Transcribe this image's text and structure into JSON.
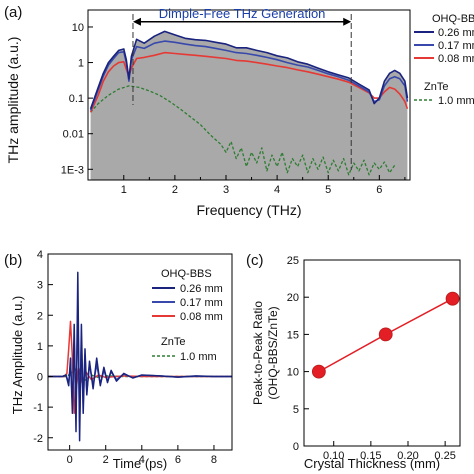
{
  "chart_data": [
    {
      "panel": "(a)",
      "type": "area",
      "xlabel": "Frequency (THz)",
      "ylabel": "THz amplitude (a.u.)",
      "xlim": [
        0.3,
        6.6
      ],
      "ylim": [
        0.0005,
        30
      ],
      "yscale": "log",
      "xticks": [
        1,
        2,
        3,
        4,
        5,
        6
      ],
      "yticks": [
        0.001,
        0.01,
        0.1,
        1,
        10
      ],
      "ytick_labels": [
        "1E-3",
        "0.01",
        "0.1",
        "1",
        "10"
      ],
      "annotation": {
        "text": "Dimple-Free THz Generation",
        "from": 1.18,
        "to": 5.45,
        "y": 14
      },
      "legend_groups": [
        {
          "title": "OHQ-BBS",
          "entries": [
            "0.26 mm",
            "0.17 mm",
            "0.08 mm"
          ]
        },
        {
          "title": "ZnTe",
          "entries": [
            "1.0 mm"
          ]
        }
      ],
      "legend_placement": "right-outside",
      "grid": false,
      "series": [
        {
          "name": "0.26 mm",
          "color": "#1a237e",
          "fill": "#a9a9a9",
          "x": [
            0.35,
            0.5,
            0.6,
            0.7,
            0.8,
            0.9,
            1.0,
            1.05,
            1.1,
            1.15,
            1.25,
            1.4,
            1.6,
            1.8,
            2.0,
            2.2,
            2.4,
            2.6,
            2.8,
            3.0,
            3.2,
            3.4,
            3.6,
            3.8,
            4.0,
            4.2,
            4.4,
            4.6,
            4.8,
            5.0,
            5.2,
            5.4,
            5.6,
            5.8,
            5.9,
            6.0,
            6.1,
            6.2,
            6.3,
            6.4,
            6.5,
            6.55
          ],
          "y": [
            0.05,
            0.2,
            0.5,
            1.0,
            1.5,
            2.2,
            2.4,
            1.2,
            0.35,
            1.5,
            4.5,
            3.5,
            5.5,
            7.5,
            6.0,
            4.8,
            4.4,
            4.2,
            3.7,
            3.3,
            2.6,
            2.6,
            2.2,
            1.9,
            1.55,
            1.35,
            1.05,
            0.9,
            0.7,
            0.55,
            0.45,
            0.37,
            0.25,
            0.17,
            0.07,
            0.1,
            0.3,
            0.5,
            0.6,
            0.5,
            0.3,
            0.1
          ]
        },
        {
          "name": "0.17 mm",
          "color": "#3949ab",
          "x": [
            0.35,
            0.5,
            0.6,
            0.7,
            0.8,
            0.9,
            1.0,
            1.05,
            1.1,
            1.15,
            1.25,
            1.4,
            1.6,
            1.8,
            2.0,
            2.2,
            2.4,
            2.6,
            2.8,
            3.0,
            3.2,
            3.4,
            3.6,
            3.8,
            4.0,
            4.2,
            4.4,
            4.6,
            4.8,
            5.0,
            5.2,
            5.4,
            5.6,
            5.8,
            5.9,
            6.0,
            6.1,
            6.2,
            6.3,
            6.4,
            6.5,
            6.55
          ],
          "y": [
            0.045,
            0.17,
            0.42,
            0.85,
            1.3,
            1.9,
            2.0,
            1.0,
            0.3,
            1.2,
            2.8,
            2.5,
            3.5,
            4.0,
            3.7,
            3.3,
            3.0,
            2.8,
            2.5,
            2.2,
            1.9,
            1.8,
            1.6,
            1.4,
            1.2,
            1.0,
            0.85,
            0.75,
            0.6,
            0.48,
            0.4,
            0.32,
            0.22,
            0.15,
            0.08,
            0.09,
            0.22,
            0.35,
            0.4,
            0.35,
            0.22,
            0.08
          ]
        },
        {
          "name": "0.08 mm",
          "color": "#e53935",
          "x": [
            0.35,
            0.5,
            0.6,
            0.7,
            0.8,
            0.9,
            1.0,
            1.05,
            1.1,
            1.15,
            1.25,
            1.4,
            1.6,
            1.8,
            2.0,
            2.2,
            2.4,
            2.6,
            2.8,
            3.0,
            3.2,
            3.4,
            3.6,
            3.8,
            4.0,
            4.2,
            4.4,
            4.6,
            4.8,
            5.0,
            5.2,
            5.4,
            5.6,
            5.8,
            5.9,
            6.0,
            6.1,
            6.2,
            6.3,
            6.4,
            6.5,
            6.55
          ],
          "y": [
            0.04,
            0.12,
            0.3,
            0.55,
            0.8,
            1.0,
            1.05,
            0.65,
            0.4,
            0.7,
            1.3,
            1.4,
            1.6,
            1.9,
            1.8,
            1.7,
            1.6,
            1.5,
            1.4,
            1.3,
            1.15,
            1.1,
            1.0,
            0.9,
            0.8,
            0.72,
            0.62,
            0.55,
            0.47,
            0.4,
            0.34,
            0.28,
            0.2,
            0.14,
            0.1,
            0.1,
            0.15,
            0.2,
            0.18,
            0.13,
            0.08,
            0.05
          ]
        },
        {
          "name": "1.0 mm",
          "color": "#2e7d32",
          "dash": true,
          "x": [
            0.35,
            0.5,
            0.7,
            0.9,
            1.1,
            1.3,
            1.5,
            1.7,
            1.9,
            2.1,
            2.3,
            2.5,
            2.7,
            2.9,
            3.0,
            3.1,
            3.2,
            3.3,
            3.4,
            3.5,
            3.6,
            3.7,
            3.8,
            3.9,
            4.0,
            4.1,
            4.2,
            4.3,
            4.4,
            4.5,
            4.6,
            4.7,
            4.8,
            4.9,
            5.0,
            5.1,
            5.2,
            5.3,
            5.4,
            5.5,
            5.6,
            5.7,
            5.8,
            5.9,
            6.0,
            6.1,
            6.2,
            6.3
          ],
          "y": [
            0.04,
            0.07,
            0.12,
            0.18,
            0.22,
            0.2,
            0.16,
            0.12,
            0.08,
            0.05,
            0.03,
            0.018,
            0.009,
            0.005,
            0.003,
            0.006,
            0.002,
            0.004,
            0.0012,
            0.003,
            0.0015,
            0.004,
            0.0009,
            0.0025,
            0.0012,
            0.003,
            0.0008,
            0.002,
            0.0012,
            0.0025,
            0.0008,
            0.002,
            0.001,
            0.0022,
            0.0008,
            0.0018,
            0.0009,
            0.002,
            0.0007,
            0.0015,
            0.0009,
            0.0018,
            0.0007,
            0.0015,
            0.001,
            0.0016,
            0.0008,
            0.0013
          ]
        }
      ]
    },
    {
      "panel": "(b)",
      "type": "line",
      "xlabel": "Time (ps)",
      "ylabel": "THz Amplitude (a.u.)",
      "xlim": [
        -1.2,
        9
      ],
      "ylim": [
        -2.4,
        4.0
      ],
      "xticks": [
        0,
        2,
        4,
        6,
        8
      ],
      "yticks": [
        -2,
        -1,
        0,
        1,
        2,
        3,
        4
      ],
      "legend_groups": [
        {
          "title": "OHQ-BBS",
          "entries": [
            "0.26 mm",
            "0.17 mm",
            "0.08 mm"
          ]
        },
        {
          "title": "ZnTe",
          "entries": [
            "1.0 mm"
          ]
        }
      ],
      "legend_placement": "top-right",
      "grid": false,
      "series": [
        {
          "name": "0.26 mm",
          "color": "#1a237e",
          "x": [
            -1.2,
            -0.4,
            -0.2,
            -0.05,
            0.05,
            0.15,
            0.25,
            0.35,
            0.45,
            0.55,
            0.65,
            0.75,
            0.85,
            0.95,
            1.1,
            1.3,
            1.5,
            1.7,
            1.9,
            2.1,
            2.3,
            2.6,
            3.0,
            3.5,
            4.0,
            5.0,
            6.0,
            7.0,
            8.0,
            9.0
          ],
          "y": [
            0,
            0,
            0.05,
            -0.3,
            0.6,
            -1.2,
            1.7,
            -1.8,
            3.4,
            -2.1,
            1.7,
            -1.2,
            0.9,
            -0.6,
            0.5,
            -0.4,
            0.6,
            -0.3,
            0.3,
            -0.2,
            0.2,
            -0.15,
            0.1,
            -0.05,
            0.05,
            0.02,
            -0.02,
            0.02,
            0,
            0
          ]
        },
        {
          "name": "0.17 mm",
          "color": "#3949ab",
          "x": [
            -1.2,
            -0.4,
            -0.2,
            -0.05,
            0.05,
            0.15,
            0.25,
            0.35,
            0.45,
            0.55,
            0.65,
            0.75,
            0.85,
            0.95,
            1.1,
            1.3,
            1.5,
            1.7,
            1.9,
            2.1,
            2.3,
            2.6,
            3.0,
            3.5,
            4.0,
            5.0,
            6.0,
            7.0,
            8.0,
            9.0
          ],
          "y": [
            0,
            0,
            0.04,
            -0.2,
            0.4,
            -0.8,
            1.1,
            -1.2,
            2.3,
            -1.5,
            1.2,
            -0.9,
            0.7,
            -0.5,
            0.4,
            -0.3,
            0.4,
            -0.25,
            0.2,
            -0.15,
            0.15,
            -0.1,
            0.08,
            -0.04,
            0.04,
            0.02,
            -0.02,
            0.01,
            0,
            0
          ]
        },
        {
          "name": "0.08 mm",
          "color": "#e53935",
          "x": [
            -1.2,
            -0.3,
            -0.15,
            -0.05,
            0.05,
            0.15,
            0.25,
            0.35,
            0.5,
            0.7,
            0.9,
            1.2,
            1.6,
            2.0,
            3.0,
            4.0,
            6.0,
            9.0
          ],
          "y": [
            0,
            0,
            0.1,
            0.9,
            1.8,
            0.6,
            -1.2,
            -0.5,
            0.3,
            -0.2,
            0.15,
            -0.1,
            0.05,
            -0.03,
            0.02,
            0,
            0,
            0
          ]
        },
        {
          "name": "1.0 mm",
          "color": "#2e7d32",
          "dash": true,
          "x": [
            -1.2,
            -0.2,
            0.1,
            0.3,
            0.5,
            0.7,
            0.9,
            1.2,
            1.6,
            2.0,
            3.0,
            4.0,
            6.0,
            9.0
          ],
          "y": [
            0,
            0,
            0.1,
            0.25,
            0.1,
            -0.15,
            -0.1,
            0.05,
            -0.03,
            0.02,
            0,
            0,
            0,
            0
          ]
        }
      ]
    },
    {
      "panel": "(c)",
      "type": "scatter",
      "xlabel": "Crystal Thickness (mm)",
      "ylabel_lines": [
        "Peak-to-Peak Ratio",
        "(OHQ-BBS/ZnTe)"
      ],
      "xlim": [
        0.06,
        0.27
      ],
      "ylim": [
        0,
        25
      ],
      "xticks": [
        0.1,
        0.15,
        0.2,
        0.25
      ],
      "xtick_labels": [
        "0.10",
        "0.15",
        "0.20",
        "0.25"
      ],
      "yticks": [
        0,
        5,
        10,
        15,
        20,
        25
      ],
      "grid": false,
      "series": [
        {
          "color": "#e31e24",
          "x": [
            0.08,
            0.17,
            0.26
          ],
          "y": [
            10.0,
            15.0,
            19.8
          ]
        }
      ]
    }
  ]
}
